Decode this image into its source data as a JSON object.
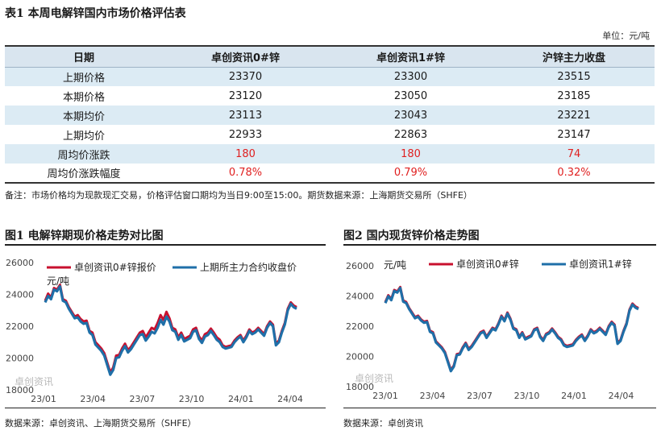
{
  "table": {
    "title": "表1 本周电解锌国内市场价格评估表",
    "unit": "单位：元/吨",
    "headers": [
      "日期",
      "卓创资讯0#锌",
      "卓创资讯1#锌",
      "沪锌主力收盘"
    ],
    "rows": [
      {
        "label": "上期价格",
        "values": [
          "23370",
          "23300",
          "23515"
        ],
        "red": false
      },
      {
        "label": "本期价格",
        "values": [
          "23120",
          "23050",
          "23185"
        ],
        "red": false
      },
      {
        "label": "本期均价",
        "values": [
          "23113",
          "23043",
          "23221"
        ],
        "red": false
      },
      {
        "label": "上期均价",
        "values": [
          "22933",
          "22863",
          "23147"
        ],
        "red": false
      },
      {
        "label": "周均价涨跌",
        "values": [
          "180",
          "180",
          "74"
        ],
        "red": true
      },
      {
        "label": "周均价涨跌幅度",
        "values": [
          "0.78%",
          "0.79%",
          "0.32%"
        ],
        "red": true
      }
    ],
    "note": "备注：市场价格均为现款现汇交易，价格评估窗口期均为当日9:00至15:00。期货数据来源：上海期货交易所（SHFE）"
  },
  "fig1": {
    "title": "图1 电解锌期现价格走势对比图",
    "source": "数据来源：卓创资讯、上海期货交易所（SHFE）",
    "watermark": "卓创资讯"
  },
  "fig2": {
    "title": "图2 国内现货锌价格走势图",
    "source": "数据来源：卓创资讯",
    "watermark": "卓创资讯"
  },
  "chart_data": [
    {
      "type": "line",
      "title": "电解锌期现价格走势对比图",
      "ylabel": "元/吨",
      "ylim": [
        18000,
        26000
      ],
      "yticks": [
        18000,
        20000,
        22000,
        24000,
        26000
      ],
      "xticks": [
        "23/01",
        "23/04",
        "23/07",
        "23/10",
        "24/01",
        "24/04"
      ],
      "x_range": [
        "2023-01",
        "2024-05"
      ],
      "series": [
        {
          "name": "卓创资讯0#锌报价",
          "color": "#c8102e",
          "values": [
            23600,
            24050,
            23800,
            24400,
            24300,
            24600,
            23700,
            23600,
            23200,
            22900,
            22600,
            22700,
            22450,
            22300,
            22350,
            21700,
            21600,
            21000,
            20800,
            20600,
            20300,
            19700,
            19100,
            19400,
            20150,
            20200,
            20600,
            20900,
            20500,
            20700,
            21000,
            21300,
            21600,
            21700,
            21300,
            21600,
            21900,
            21800,
            22200,
            22700,
            22400,
            22900,
            22500,
            21900,
            21800,
            21300,
            21600,
            21200,
            21300,
            21400,
            21800,
            21900,
            21350,
            21100,
            21500,
            21600,
            21850,
            21600,
            21300,
            21150,
            20800,
            20700,
            20750,
            20800,
            21100,
            21300,
            21450,
            21100,
            21400,
            21800,
            21600,
            21700,
            21900,
            21700,
            21500,
            22000,
            22300,
            22100,
            20900,
            21100,
            21700,
            22200,
            23100,
            23500,
            23300,
            23200
          ]
        },
        {
          "name": "上期所主力合约收盘价",
          "color": "#1f6fa8",
          "values": [
            23500,
            23900,
            23700,
            24300,
            24200,
            24500,
            23600,
            23500,
            23100,
            22800,
            22500,
            22550,
            22300,
            22150,
            22200,
            21600,
            21450,
            20850,
            20650,
            20450,
            20150,
            19550,
            18950,
            19250,
            20000,
            20050,
            20450,
            20750,
            20350,
            20550,
            20850,
            21150,
            21450,
            21500,
            21100,
            21350,
            21650,
            21550,
            21900,
            22400,
            22100,
            22600,
            22300,
            21750,
            21650,
            21150,
            21450,
            21050,
            21150,
            21250,
            21650,
            21750,
            21200,
            20950,
            21350,
            21450,
            21700,
            21450,
            21150,
            21000,
            20700,
            20600,
            20650,
            20700,
            21000,
            21200,
            21350,
            21000,
            21300,
            21700,
            21500,
            21600,
            21800,
            21600,
            21400,
            21900,
            22200,
            22000,
            20800,
            21000,
            21600,
            22100,
            23000,
            23400,
            23200,
            23100
          ]
        }
      ]
    },
    {
      "type": "line",
      "title": "国内现货锌价格走势图",
      "ylabel": "元/吨",
      "ylim": [
        18000,
        26000
      ],
      "yticks": [
        18000,
        20000,
        22000,
        24000,
        26000
      ],
      "xticks": [
        "23/01",
        "23/04",
        "23/07",
        "23/10",
        "24/01",
        "24/04"
      ],
      "x_range": [
        "2023-01",
        "2024-05"
      ],
      "series": [
        {
          "name": "卓创资讯0#锌",
          "color": "#c8102e",
          "values": [
            23600,
            24050,
            23800,
            24400,
            24300,
            24600,
            23700,
            23600,
            23200,
            22900,
            22600,
            22700,
            22450,
            22300,
            22350,
            21700,
            21600,
            21000,
            20800,
            20600,
            20300,
            19700,
            19100,
            19400,
            20150,
            20200,
            20600,
            20900,
            20500,
            20700,
            21000,
            21300,
            21600,
            21700,
            21300,
            21600,
            21900,
            21800,
            22200,
            22700,
            22400,
            22900,
            22500,
            21900,
            21800,
            21300,
            21600,
            21200,
            21300,
            21400,
            21800,
            21900,
            21350,
            21100,
            21500,
            21600,
            21850,
            21600,
            21300,
            21150,
            20800,
            20700,
            20750,
            20800,
            21100,
            21300,
            21450,
            21100,
            21400,
            21800,
            21600,
            21700,
            21900,
            21700,
            21500,
            22000,
            22300,
            22100,
            20900,
            21100,
            21700,
            22200,
            23100,
            23500,
            23300,
            23200
          ]
        },
        {
          "name": "卓创资讯1#锌",
          "color": "#1f6fa8",
          "values": [
            23530,
            23980,
            23730,
            24330,
            24230,
            24530,
            23630,
            23530,
            23130,
            22830,
            22530,
            22630,
            22380,
            22230,
            22280,
            21630,
            21530,
            20930,
            20730,
            20530,
            20230,
            19630,
            19030,
            19330,
            20080,
            20130,
            20530,
            20830,
            20430,
            20630,
            20930,
            21230,
            21530,
            21630,
            21230,
            21530,
            21830,
            21730,
            22130,
            22630,
            22330,
            22830,
            22430,
            21830,
            21730,
            21230,
            21530,
            21130,
            21230,
            21330,
            21730,
            21830,
            21280,
            21030,
            21430,
            21530,
            21780,
            21530,
            21230,
            21080,
            20730,
            20630,
            20680,
            20730,
            21030,
            21230,
            21380,
            21030,
            21330,
            21730,
            21530,
            21630,
            21830,
            21630,
            21430,
            21930,
            22230,
            22030,
            20830,
            21030,
            21630,
            22130,
            23030,
            23430,
            23230,
            23130
          ]
        }
      ]
    }
  ]
}
